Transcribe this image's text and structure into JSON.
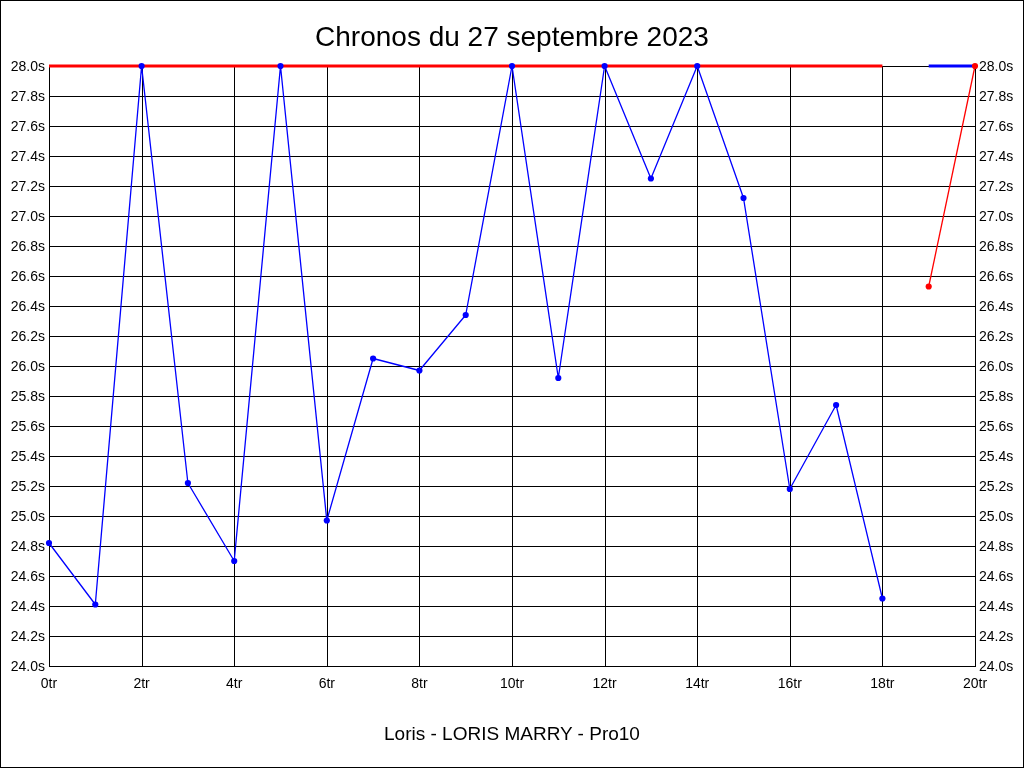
{
  "chart_data": {
    "type": "line",
    "title": "Chronos du 27 septembre 2023",
    "xlabel": "Loris - LORIS MARRY - Pro10",
    "xlim": [
      0,
      20
    ],
    "xticks": [
      {
        "value": 0,
        "label": "0tr"
      },
      {
        "value": 2,
        "label": "2tr"
      },
      {
        "value": 4,
        "label": "4tr"
      },
      {
        "value": 6,
        "label": "6tr"
      },
      {
        "value": 8,
        "label": "8tr"
      },
      {
        "value": 10,
        "label": "10tr"
      },
      {
        "value": 12,
        "label": "12tr"
      },
      {
        "value": 14,
        "label": "14tr"
      },
      {
        "value": 16,
        "label": "16tr"
      },
      {
        "value": 18,
        "label": "18tr"
      },
      {
        "value": 20,
        "label": "20tr"
      }
    ],
    "ylim": [
      24,
      28
    ],
    "yticks": [
      {
        "value": 24,
        "label": "24.0s"
      },
      {
        "value": 24.2,
        "label": "24.2s"
      },
      {
        "value": 24.4,
        "label": "24.4s"
      },
      {
        "value": 24.6,
        "label": "24.6s"
      },
      {
        "value": 24.8,
        "label": "24.8s"
      },
      {
        "value": 25,
        "label": "25.0s"
      },
      {
        "value": 25.2,
        "label": "25.2s"
      },
      {
        "value": 25.4,
        "label": "25.4s"
      },
      {
        "value": 25.6,
        "label": "25.6s"
      },
      {
        "value": 25.8,
        "label": "25.8s"
      },
      {
        "value": 26,
        "label": "26.0s"
      },
      {
        "value": 26.2,
        "label": "26.2s"
      },
      {
        "value": 26.4,
        "label": "26.4s"
      },
      {
        "value": 26.6,
        "label": "26.6s"
      },
      {
        "value": 26.8,
        "label": "26.8s"
      },
      {
        "value": 27,
        "label": "27.0s"
      },
      {
        "value": 27.2,
        "label": "27.2s"
      },
      {
        "value": 27.4,
        "label": "27.4s"
      },
      {
        "value": 27.6,
        "label": "27.6s"
      },
      {
        "value": 27.8,
        "label": "27.8s"
      },
      {
        "value": 28,
        "label": "28.0s"
      }
    ],
    "y2lim": [
      24,
      28
    ],
    "y2ticks": [
      {
        "value": 24,
        "label": "24.0s"
      },
      {
        "value": 24.2,
        "label": "24.2s"
      },
      {
        "value": 24.4,
        "label": "24.4s"
      },
      {
        "value": 24.6,
        "label": "24.6s"
      },
      {
        "value": 24.8,
        "label": "24.8s"
      },
      {
        "value": 25,
        "label": "25.0s"
      },
      {
        "value": 25.2,
        "label": "25.2s"
      },
      {
        "value": 25.4,
        "label": "25.4s"
      },
      {
        "value": 25.6,
        "label": "25.6s"
      },
      {
        "value": 25.8,
        "label": "25.8s"
      },
      {
        "value": 26,
        "label": "26.0s"
      },
      {
        "value": 26.2,
        "label": "26.2s"
      },
      {
        "value": 26.4,
        "label": "26.4s"
      },
      {
        "value": 26.6,
        "label": "26.6s"
      },
      {
        "value": 26.8,
        "label": "26.8s"
      },
      {
        "value": 27,
        "label": "27.0s"
      },
      {
        "value": 27.2,
        "label": "27.2s"
      },
      {
        "value": 27.4,
        "label": "27.4s"
      },
      {
        "value": 27.6,
        "label": "27.6s"
      },
      {
        "value": 27.8,
        "label": "27.8s"
      },
      {
        "value": 28,
        "label": "28.0s"
      }
    ],
    "grid": true,
    "marker": "circle",
    "line_style": "solid",
    "series": [
      {
        "color": "#ff0000",
        "marker": "none",
        "x": [
          0,
          18
        ],
        "values": [
          28,
          28
        ]
      },
      {
        "color": "#0000ff",
        "marker": "none",
        "x": [
          19,
          20
        ],
        "values": [
          28,
          28
        ]
      },
      {
        "color": "#0000ff",
        "x": [
          0,
          1,
          2,
          3,
          4,
          5,
          6,
          7,
          8,
          9,
          10,
          11,
          12,
          13,
          14,
          15,
          16,
          17,
          18
        ],
        "values": [
          24.82,
          24.41,
          28,
          25.22,
          24.7,
          28,
          24.97,
          26.05,
          25.97,
          26.34,
          28,
          25.92,
          28,
          27.25,
          28,
          27.12,
          25.18,
          25.74,
          24.45
        ]
      },
      {
        "color": "#ff0000",
        "x": [
          19,
          20
        ],
        "values": [
          26.53,
          28
        ]
      }
    ]
  }
}
